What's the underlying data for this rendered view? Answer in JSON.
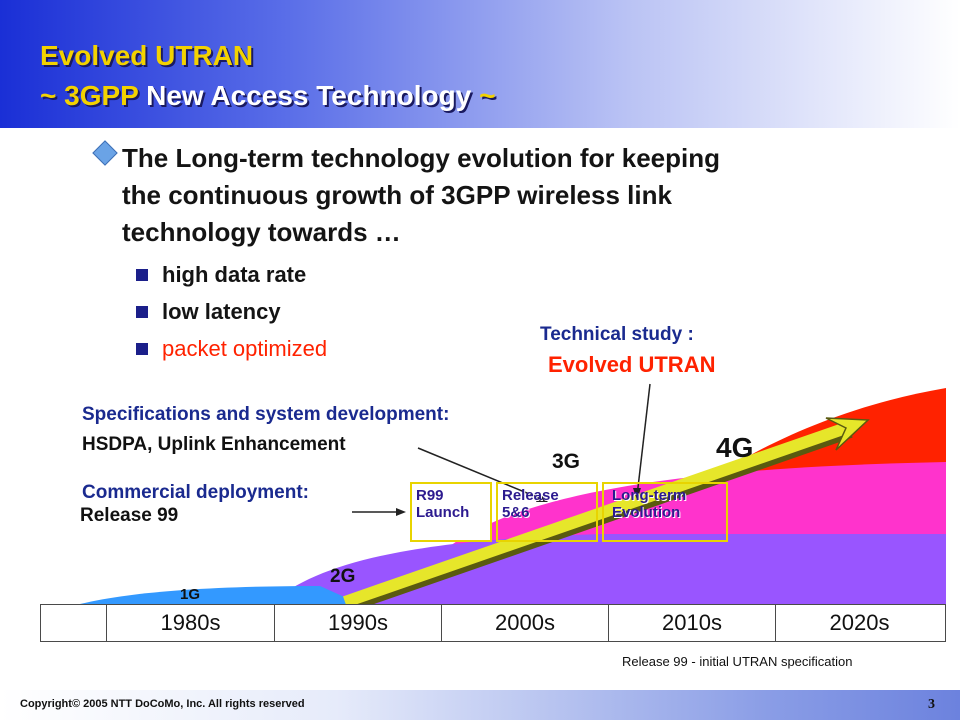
{
  "slide": {
    "title_line1": "Evolved UTRAN",
    "title_line2_prefix": "~ 3GPP",
    "title_line2_accent": " New Access Technology ",
    "title_line2_suffix": "~"
  },
  "main_bullet": {
    "text": "The Long-term technology evolution for keeping the continuous growth of 3GPP wireless link technology towards …"
  },
  "sub_bullets": [
    {
      "text": "high data rate"
    },
    {
      "text": "low latency"
    },
    {
      "text": "packet optimized"
    }
  ],
  "diagram": {
    "technical_study_label": "Technical study :",
    "technical_study_value": "Evolved UTRAN",
    "spec_label": "Specifications and system development:",
    "spec_value": "HSDPA, Uplink Enhancement",
    "commercial_label": "Commercial deployment:",
    "commercial_value": "Release 99",
    "gen_labels": {
      "g1": "1G",
      "g2": "2G",
      "g3": "3G",
      "g4": "4G"
    },
    "boxes": {
      "r99": "R99\nLaunch",
      "release56": "Release\n5&6",
      "lte": "Long-term\nEvolution"
    },
    "colors": {
      "g1": "#3399ff",
      "g2": "#9955ff",
      "g3": "#ff33cc",
      "g4": "#ff2200",
      "arrow": "#e6e62a"
    }
  },
  "timeline": {
    "decades": [
      "",
      "1980s",
      "1990s",
      "2000s",
      "2010s",
      "2020s"
    ]
  },
  "footnote": "Release 99 - initial UTRAN specification",
  "footer": {
    "copyright": "Copyright© 2005 NTT DoCoMo, Inc. All rights reserved",
    "page_number": "3"
  }
}
